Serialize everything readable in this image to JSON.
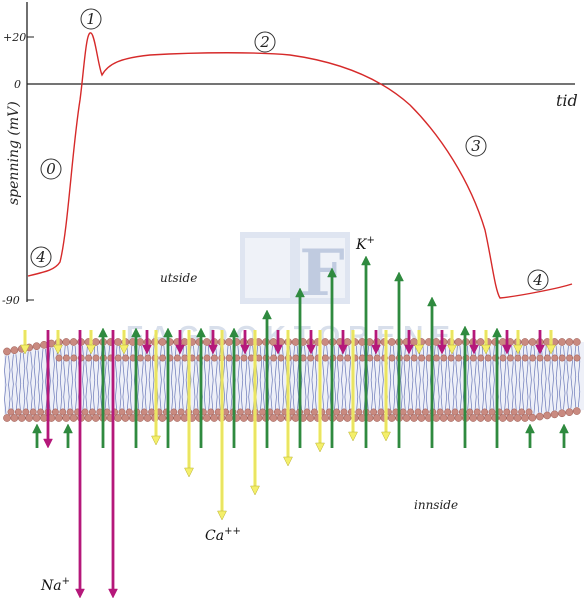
{
  "axis": {
    "y_label": "spenning (mV)",
    "x_label": "tid",
    "ticks": [
      {
        "label": "+20",
        "value": 20
      },
      {
        "label": "0",
        "value": 0
      },
      {
        "label": "-90",
        "value": -90
      }
    ]
  },
  "phases": [
    "0",
    "1",
    "2",
    "3",
    "4",
    "4"
  ],
  "regions": {
    "outside": "utside",
    "inside": "innside"
  },
  "ions": {
    "potassium": {
      "label": "K",
      "charge": "+",
      "color": "#2f8a3f"
    },
    "calcium": {
      "label": "Ca",
      "charge": "++",
      "color": "#f4ef6a"
    },
    "sodium": {
      "label": "Na",
      "charge": "+",
      "color": "#b5187a"
    }
  },
  "colors": {
    "curve": "#d62a2a",
    "membrane_head": "#c98a80",
    "lipid_tail": "#6a78b8"
  },
  "watermark": {
    "letter": "F",
    "text": "FAGDOKTORENE"
  }
}
